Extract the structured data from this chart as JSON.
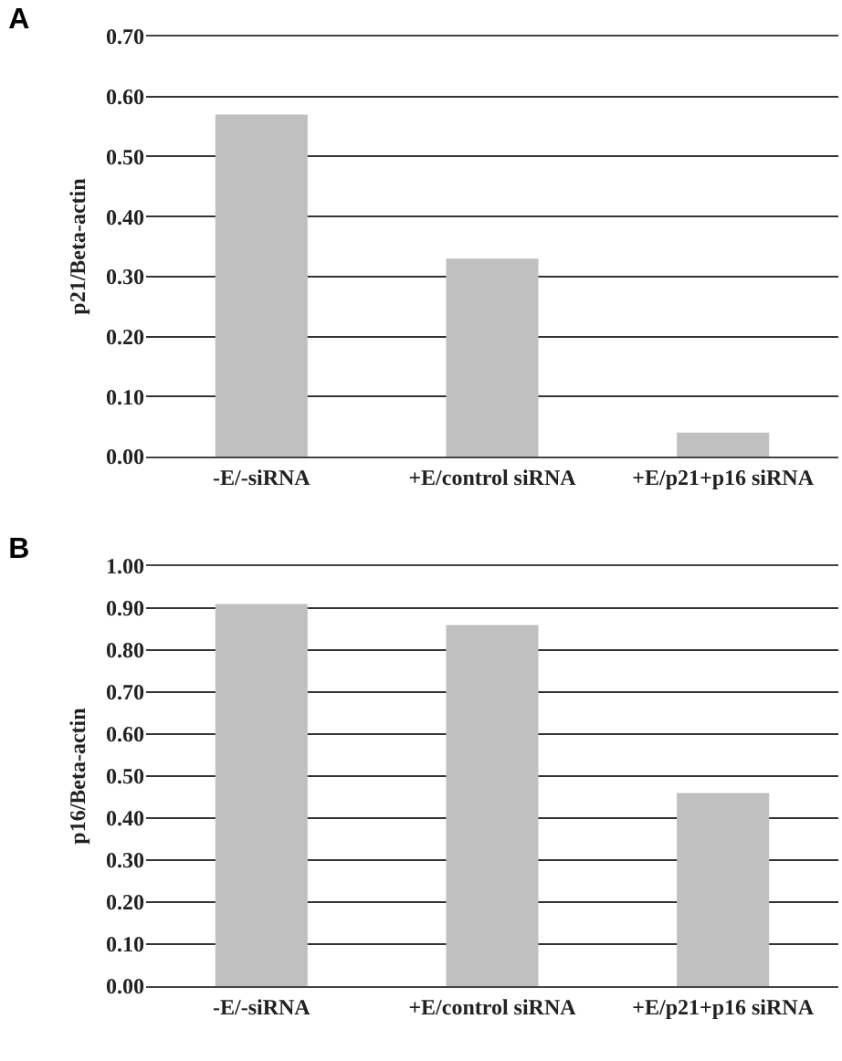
{
  "chart_data": [
    {
      "type": "bar",
      "title": "A",
      "ylabel": "p21/Beta-actin",
      "categories": [
        "-E/-siRNA",
        "+E/control siRNA",
        "+E/p21+p16 siRNA"
      ],
      "values": [
        0.57,
        0.33,
        0.04
      ],
      "color": "#c0c0c0",
      "ylim": [
        0,
        0.7
      ],
      "yticks": [
        {
          "value": 0,
          "label": "0.00"
        },
        {
          "value": 0.1,
          "label": "0.10"
        },
        {
          "value": 0.2,
          "label": "0.20"
        },
        {
          "value": 0.3,
          "label": "0.30"
        },
        {
          "value": 0.4,
          "label": "0.40"
        },
        {
          "value": 0.5,
          "label": "0.50"
        },
        {
          "value": 0.6,
          "label": "0.60"
        },
        {
          "value": 0.7,
          "label": "0.70"
        }
      ],
      "grid": "y"
    },
    {
      "type": "bar",
      "title": "B",
      "ylabel": "p16/Beta-actin",
      "categories": [
        "-E/-siRNA",
        "+E/control siRNA",
        "+E/p21+p16 siRNA"
      ],
      "values": [
        0.91,
        0.86,
        0.46
      ],
      "color": "#c0c0c0",
      "ylim": [
        0,
        1
      ],
      "yticks": [
        {
          "value": 0,
          "label": "0.00"
        },
        {
          "value": 0.1,
          "label": "0.10"
        },
        {
          "value": 0.2,
          "label": "0.20"
        },
        {
          "value": 0.3,
          "label": "0.30"
        },
        {
          "value": 0.4,
          "label": "0.40"
        },
        {
          "value": 0.5,
          "label": "0.50"
        },
        {
          "value": 0.6,
          "label": "0.60"
        },
        {
          "value": 0.7,
          "label": "0.70"
        },
        {
          "value": 0.8,
          "label": "0.80"
        },
        {
          "value": 0.9,
          "label": "0.90"
        },
        {
          "value": 1,
          "label": "1.00"
        }
      ],
      "grid": "y"
    }
  ]
}
